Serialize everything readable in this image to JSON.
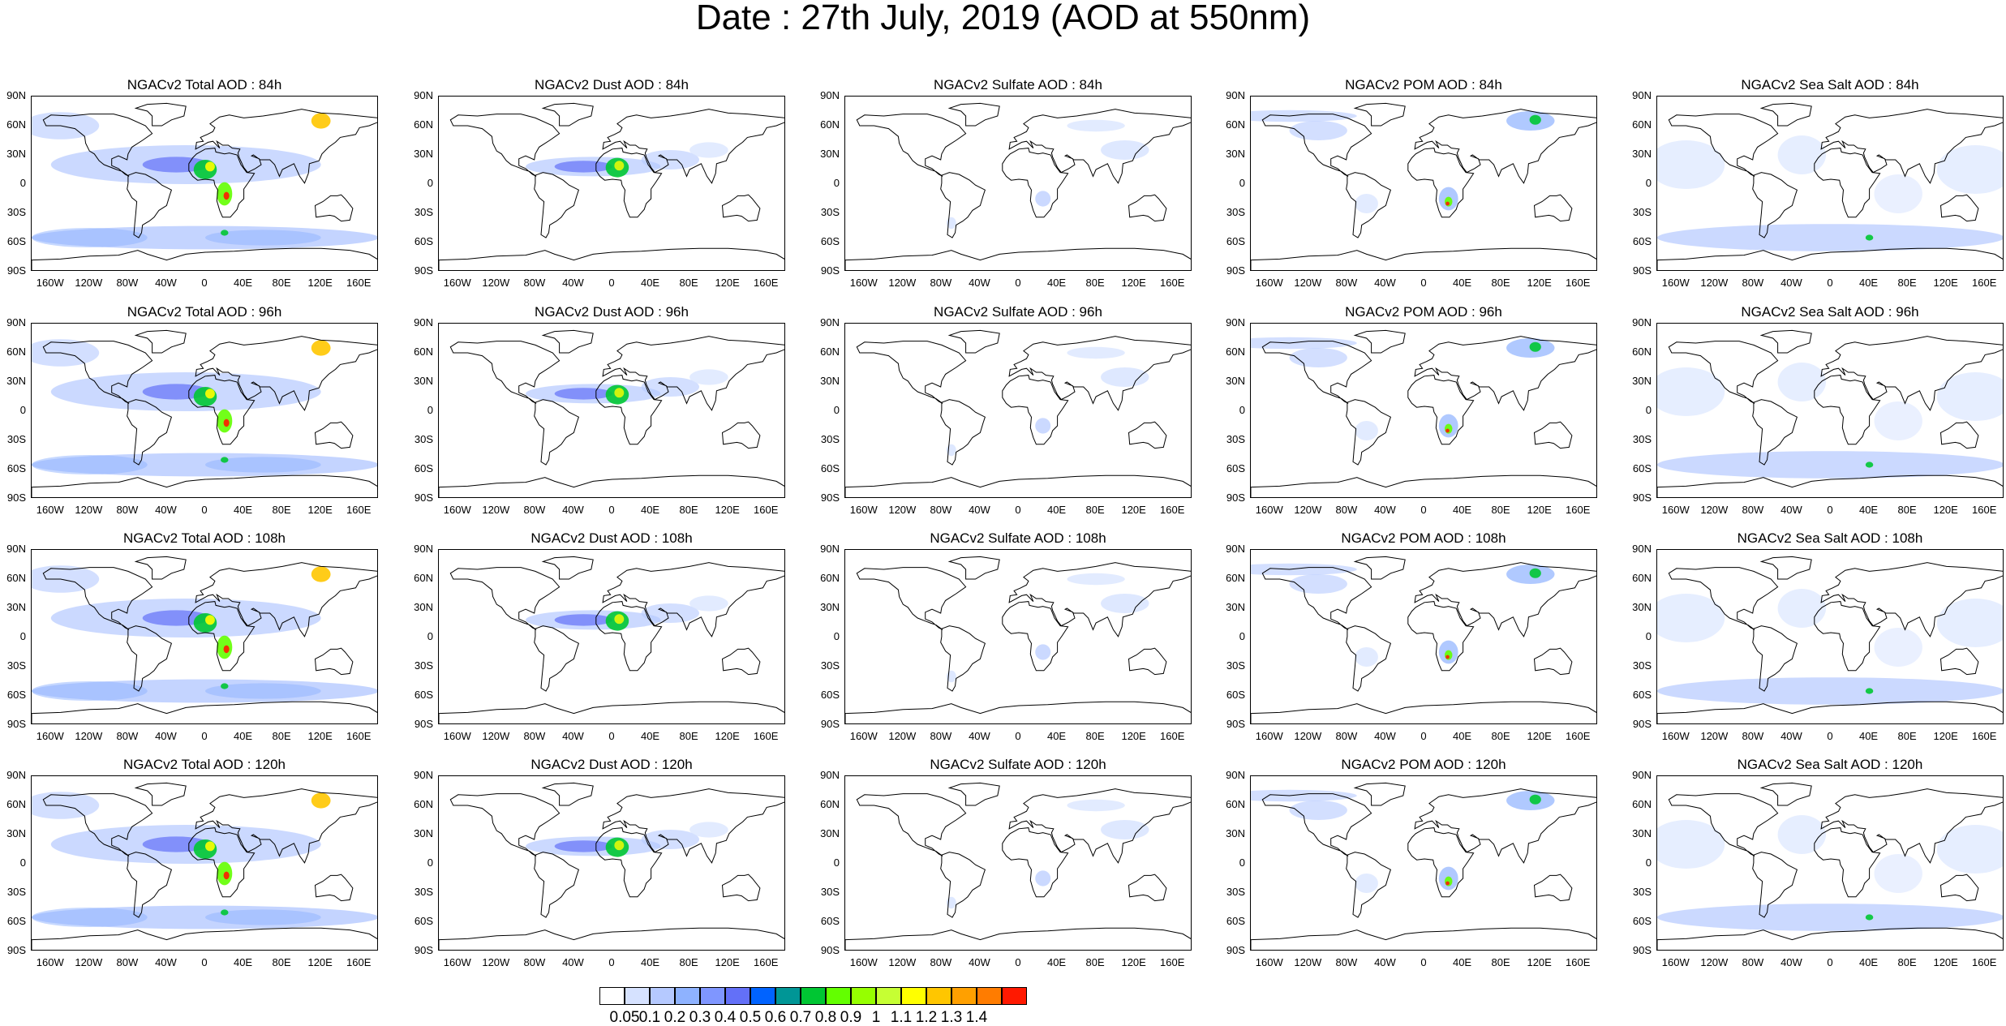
{
  "title": "Date : 27th July, 2019 (AOD at 550nm)",
  "lat_labels": [
    "90N",
    "60N",
    "30N",
    "0",
    "30S",
    "60S",
    "90S"
  ],
  "lon_labels": [
    "160W",
    "120W",
    "80W",
    "40W",
    "0",
    "40E",
    "80E",
    "120E",
    "160E"
  ],
  "panels": [
    [
      "NGACv2 Total AOD : 84h",
      "NGACv2 Dust AOD : 84h",
      "NGACv2 Sulfate AOD : 84h",
      "NGACv2 POM AOD : 84h",
      "NGACv2 Sea Salt AOD : 84h"
    ],
    [
      "NGACv2 Total AOD : 96h",
      "NGACv2 Dust AOD : 96h",
      "NGACv2 Sulfate AOD : 96h",
      "NGACv2 POM AOD : 96h",
      "NGACv2 Sea Salt AOD : 96h"
    ],
    [
      "NGACv2 Total AOD : 108h",
      "NGACv2 Dust AOD : 108h",
      "NGACv2 Sulfate AOD : 108h",
      "NGACv2 POM AOD : 108h",
      "NGACv2 Sea Salt AOD : 108h"
    ],
    [
      "NGACv2 Total AOD : 120h",
      "NGACv2 Dust AOD : 120h",
      "NGACv2 Sulfate AOD : 120h",
      "NGACv2 POM AOD : 120h",
      "NGACv2 Sea Salt  AOD : 120h"
    ]
  ],
  "colorbar": {
    "labels": [
      "0.05",
      "0.1",
      "0.2",
      "0.3",
      "0.4",
      "0.5",
      "0.6",
      "0.7",
      "0.8",
      "0.9",
      "1",
      "1.1",
      "1.2",
      "1.3",
      "1.4"
    ],
    "colors": [
      "#ffffff",
      "#d6e2ff",
      "#b5c9ff",
      "#8eb2ff",
      "#7f96ff",
      "#6370f8",
      "#0063ff",
      "#009696",
      "#00c633",
      "#63ff00",
      "#96ff00",
      "#c6ff33",
      "#ffff00",
      "#ffc600",
      "#ffa000",
      "#ff7c00",
      "#ff1900"
    ]
  }
}
